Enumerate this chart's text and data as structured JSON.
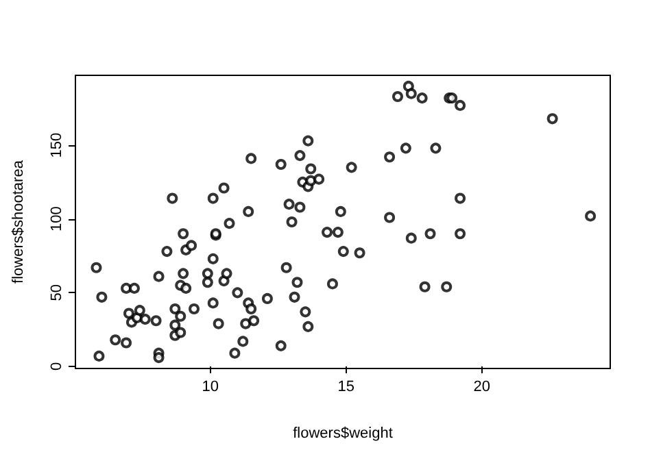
{
  "chart_data": {
    "type": "scatter",
    "xlabel": "flowers$weight",
    "ylabel": "flowers$shootarea",
    "marker": "circle",
    "grid": false,
    "xlim": [
      5.03,
      24.73
    ],
    "ylim": [
      -1.4,
      197.4
    ],
    "xticks": [
      10,
      15,
      20
    ],
    "yticks": [
      0,
      50,
      100,
      150
    ],
    "series": [
      {
        "color": "#000000",
        "x": [
          5.8,
          6.0,
          5.9,
          6.5,
          6.9,
          6.9,
          7.2,
          7.0,
          7.1,
          7.3,
          7.4,
          7.6,
          8.0,
          8.1,
          8.1,
          8.1,
          8.4,
          8.6,
          8.7,
          8.9,
          8.7,
          8.7,
          8.9,
          8.9,
          9.1,
          9.0,
          9.1,
          9.3,
          9.0,
          9.4,
          9.9,
          9.9,
          10.1,
          10.1,
          10.2,
          10.2,
          10.3,
          10.1,
          10.5,
          10.7,
          10.5,
          10.6,
          10.9,
          11.0,
          11.2,
          11.3,
          11.4,
          11.5,
          11.6,
          11.4,
          11.5,
          12.6,
          13.3,
          13.6,
          13.7,
          13.4,
          13.6,
          13.7,
          14.0,
          15.2,
          12.9,
          13.3,
          13.0,
          14.8,
          14.3,
          14.7,
          14.9,
          15.5,
          12.8,
          13.2,
          14.5,
          12.1,
          13.1,
          13.5,
          13.6,
          12.6,
          16.6,
          16.6,
          17.2,
          16.9,
          17.3,
          17.4,
          17.8,
          18.3,
          17.4,
          18.1,
          17.9,
          18.7,
          18.8,
          18.9,
          19.2,
          19.2,
          19.2,
          22.6,
          24.0
        ],
        "values": [
          67,
          47,
          7,
          18,
          16,
          53,
          53,
          36,
          30,
          33,
          38,
          32,
          31,
          9,
          6,
          61,
          78,
          114,
          39,
          34,
          28,
          21,
          23,
          55,
          53,
          63,
          79,
          82,
          90,
          39,
          63,
          57,
          73,
          43,
          89,
          90,
          29,
          114,
          121,
          97,
          58,
          63,
          9,
          50,
          17,
          29,
          43,
          39,
          31,
          105,
          141,
          137,
          143,
          153,
          134,
          125,
          122,
          126,
          127,
          135,
          110,
          108,
          98,
          105,
          91,
          91,
          78,
          77,
          67,
          57,
          56,
          46,
          47,
          37,
          27,
          14,
          101,
          142,
          148,
          183,
          190,
          185,
          182,
          148,
          87,
          90,
          54,
          54,
          182,
          182,
          177,
          114,
          90,
          168,
          102
        ]
      }
    ]
  }
}
